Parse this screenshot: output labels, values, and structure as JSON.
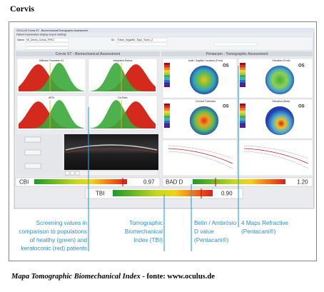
{
  "header": {
    "title": "Corvis"
  },
  "screenshot": {
    "window_title": "OCULUS Corvis ST - Biomechanical/Tomographic Assessment",
    "menu": "Patient  Examination  Display  Export  Settings",
    "patient_name_label": "Name:",
    "patient_name": "00_Demo_Corvis_FFKC",
    "id_label": "ID:",
    "id": "False_negative_Topo_Tomo_2",
    "left_panel_title": "Corvis ST - Biomechanical Assessment",
    "right_panel_title": "Pentacam - Tomographic Assessment",
    "plots": [
      "Stiffness Parameter A1",
      "Integrated Radius",
      "ARTh",
      "DA Ratio"
    ],
    "maps": [
      "Axial / Sagittal Curvature (Front)",
      "Elevation (Front)",
      "Corneal Thickness",
      "Elevation (Back)"
    ],
    "eye": "OS",
    "cbi_label": "CBI",
    "cbi_value": "0.97",
    "bad_label": "BAD D",
    "bad_value": "1.20",
    "tbi_label": "TBI",
    "tbi_value": "0.90"
  },
  "annotations": [
    {
      "lines": [
        "Screening values in",
        "comparison to populations",
        "of healthy (green) and",
        "keratoconic (red) patients"
      ]
    },
    {
      "lines": [
        "Tomographic",
        "Biomechanical",
        "Index (TBI)"
      ]
    },
    {
      "lines": [
        "Belin / Ambrósio",
        "D value",
        "(Pentacam®)"
      ]
    },
    {
      "lines": [
        "4 Maps Refractive",
        "(Pentacam®)"
      ]
    }
  ],
  "caption": {
    "italic": "Mapa Tomographic Biomechanical Index",
    "bold": " - fonte: www.oculus.de"
  }
}
